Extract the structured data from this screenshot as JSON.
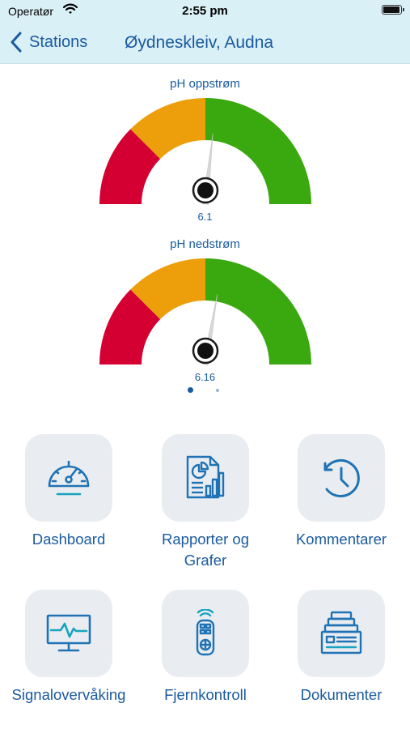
{
  "status_bar": {
    "carrier": "Operatør",
    "time": "2:55 pm",
    "battery_level": 1.0
  },
  "nav": {
    "back_label": "Stations",
    "title": "Øydneskleiv, Audna"
  },
  "gauges": [
    {
      "title": "pH oppstrøm",
      "value": "6.1",
      "value_num": 6.1,
      "range": [
        4.5,
        7.5
      ],
      "segments": [
        {
          "color": "#d40032",
          "from": 4.5,
          "to": 5.25
        },
        {
          "color": "#ec9f0b",
          "from": 5.25,
          "to": 6.0
        },
        {
          "color": "#3aa80f",
          "from": 6.0,
          "to": 7.5
        }
      ]
    },
    {
      "title": "pH nedstrøm",
      "value": "6.16",
      "value_num": 6.16,
      "range": [
        4.5,
        7.5
      ],
      "segments": [
        {
          "color": "#d40032",
          "from": 4.5,
          "to": 5.25
        },
        {
          "color": "#ec9f0b",
          "from": 5.25,
          "to": 6.0
        },
        {
          "color": "#3aa80f",
          "from": 6.0,
          "to": 7.5
        }
      ]
    }
  ],
  "pager": {
    "count": 2,
    "active_index": 0
  },
  "menu": [
    {
      "label": "Dashboard",
      "icon": "speedometer-icon"
    },
    {
      "label": "Rapporter og Grafer",
      "icon": "report-chart-icon"
    },
    {
      "label": "Kommentarer",
      "icon": "history-clock-icon"
    },
    {
      "label": "Signalovervåking",
      "icon": "monitor-signal-icon"
    },
    {
      "label": "Fjernkontroll",
      "icon": "remote-control-icon"
    },
    {
      "label": "Dokumenter",
      "icon": "documents-icon"
    }
  ],
  "colors": {
    "accent": "#1a5aa0",
    "icon": "#1f73b5",
    "nav_background": "#daf0f7",
    "tile_background": "#e9edf1"
  }
}
